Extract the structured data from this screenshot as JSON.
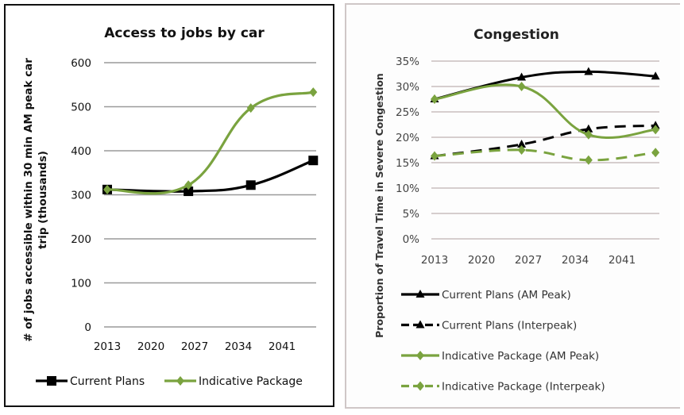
{
  "chart_data": [
    {
      "type": "line",
      "title": "Access to jobs by car",
      "xlabel": "",
      "ylabel_lines": [
        "# of jobs accessible within 30 min AM peak  car",
        "trip (thousands)"
      ],
      "x_tick_labels": [
        "2013",
        "2020",
        "2027",
        "2034",
        "2041"
      ],
      "x_tick_years": [
        2013,
        2020,
        2027,
        2034,
        2041
      ],
      "y_tick_labels": [
        "0",
        "100",
        "200",
        "300",
        "400",
        "500",
        "600"
      ],
      "ylim": [
        0,
        600
      ],
      "grid": true,
      "legend_position": "bottom",
      "x": [
        2013,
        2026,
        2036,
        2046
      ],
      "series": [
        {
          "name": "Current Plans",
          "color": "#000000",
          "marker": "square",
          "dashed": false,
          "values": [
            312,
            308,
            322,
            378
          ]
        },
        {
          "name": "Indicative Package",
          "color": "#7aa33f",
          "marker": "diamond",
          "dashed": false,
          "values": [
            312,
            322,
            497,
            533
          ]
        }
      ]
    },
    {
      "type": "line",
      "title": "Congestion",
      "xlabel": "",
      "ylabel": "Proportion of Travel Time in Severe Congestion",
      "x_tick_labels": [
        "2013",
        "2020",
        "2027",
        "2034",
        "2041"
      ],
      "x_tick_years": [
        2013,
        2020,
        2027,
        2034,
        2041
      ],
      "y_tick_labels": [
        "0%",
        "5%",
        "10%",
        "15%",
        "20%",
        "25%",
        "30%",
        "35%"
      ],
      "ylim": [
        0,
        35
      ],
      "grid": true,
      "legend_position": "bottom",
      "x": [
        2013,
        2026,
        2036,
        2046
      ],
      "series": [
        {
          "name": "Current Plans (AM Peak)",
          "color": "#000000",
          "marker": "triangle",
          "dashed": false,
          "values": [
            27.5,
            31.8,
            32.9,
            32.0
          ]
        },
        {
          "name": "Current Plans (Interpeak)",
          "color": "#000000",
          "marker": "triangle",
          "dashed": true,
          "values": [
            16.3,
            18.6,
            21.6,
            22.3
          ]
        },
        {
          "name": "Indicative Package (AM Peak)",
          "color": "#7aa33f",
          "marker": "diamond",
          "dashed": false,
          "values": [
            27.5,
            30.0,
            20.5,
            21.5
          ]
        },
        {
          "name": "Indicative Package (Interpeak)",
          "color": "#7aa33f",
          "marker": "diamond",
          "dashed": true,
          "values": [
            16.3,
            17.5,
            15.5,
            17.0
          ]
        }
      ]
    }
  ]
}
